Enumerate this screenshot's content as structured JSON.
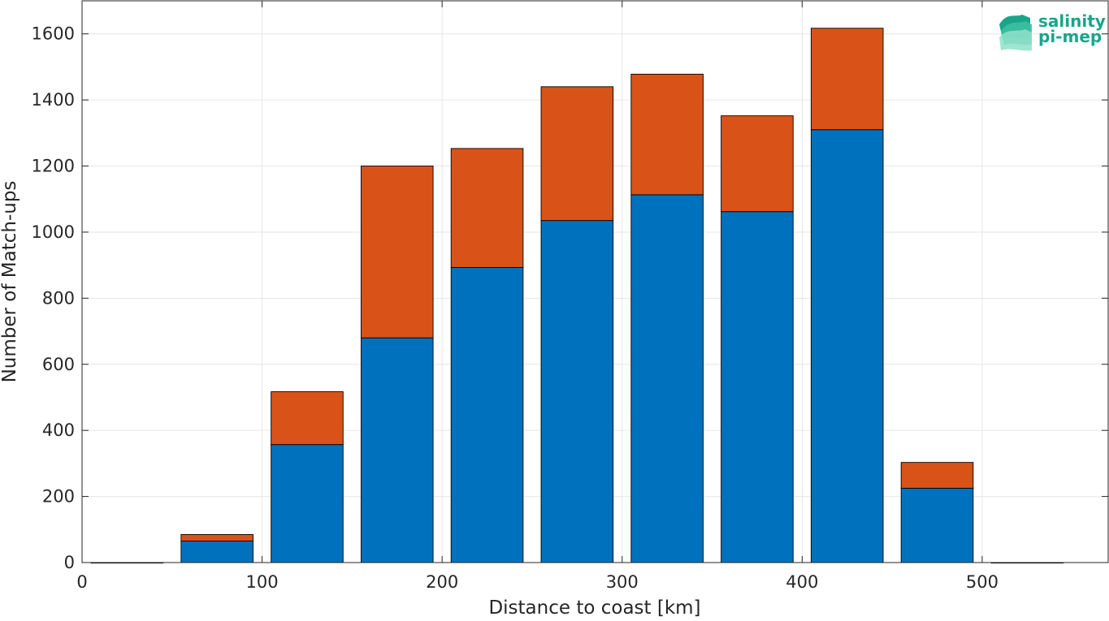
{
  "chart_data": {
    "type": "bar",
    "stacked": true,
    "xlabel": "Distance to coast [km]",
    "ylabel": "Number of Match-ups",
    "xlim": [
      0,
      570
    ],
    "ylim": [
      0,
      1700
    ],
    "xticks": [
      0,
      100,
      200,
      300,
      400,
      500
    ],
    "yticks": [
      0,
      200,
      400,
      600,
      800,
      1000,
      1200,
      1400,
      1600
    ],
    "grid": true,
    "bin_width": 40,
    "x": [
      25,
      75,
      125,
      175,
      225,
      275,
      325,
      375,
      425,
      475,
      525
    ],
    "series": [
      {
        "color": "#0072bd",
        "values": [
          0,
          65,
          357,
          680,
          893,
          1035,
          1113,
          1062,
          1310,
          225,
          0
        ]
      },
      {
        "color": "#d95319",
        "values": [
          0,
          20,
          160,
          520,
          360,
          405,
          365,
          290,
          307,
          78,
          0
        ]
      }
    ]
  },
  "logo": {
    "line1": "salinity",
    "line2": "pi-mep",
    "color": "#1aa58a"
  }
}
